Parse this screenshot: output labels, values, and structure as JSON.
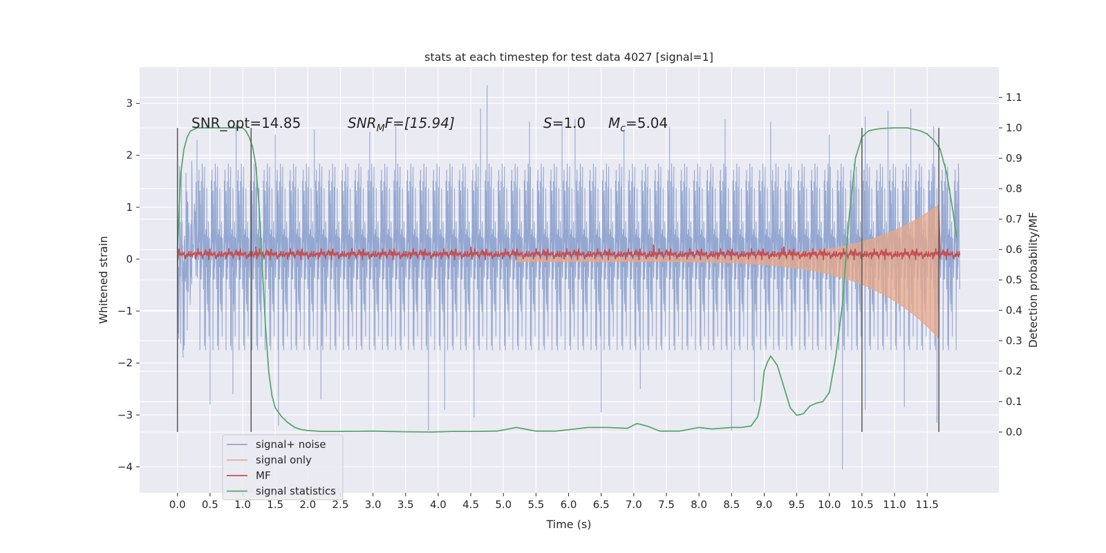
{
  "chart_data": {
    "type": "line",
    "title": "stats at each timestep for test data 4027 [signal=1]",
    "xlabel": "Time (s)",
    "ylabel": "Whitened strain",
    "y2label": "Detection probability/MF",
    "xlim": [
      -0.58,
      12.6
    ],
    "ylim": [
      -4.5,
      3.7
    ],
    "y2lim": [
      -0.2,
      1.2
    ],
    "x_ticks": [
      0.0,
      0.5,
      1.0,
      1.5,
      2.0,
      2.5,
      3.0,
      3.5,
      4.0,
      4.5,
      5.0,
      5.5,
      6.0,
      6.5,
      7.0,
      7.5,
      8.0,
      8.5,
      9.0,
      9.5,
      10.0,
      10.5,
      11.0,
      11.5
    ],
    "x_tick_labels": [
      "0.0",
      "0.5",
      "1.0",
      "1.5",
      "2.0",
      "2.5",
      "3.0",
      "3.5",
      "4.0",
      "4.5",
      "5.0",
      "5.5",
      "6.0",
      "6.5",
      "7.0",
      "7.5",
      "8.0",
      "8.5",
      "9.0",
      "9.5",
      "10.0",
      "10.5",
      "11.0",
      "11.5"
    ],
    "y_ticks": [
      -4,
      -3,
      -2,
      -1,
      0,
      1,
      2,
      3
    ],
    "y_tick_labels": [
      "−4",
      "−3",
      "−2",
      "−1",
      "0",
      "1",
      "2",
      "3"
    ],
    "y2_ticks": [
      0.0,
      0.1,
      0.2,
      0.3,
      0.4,
      0.5,
      0.6,
      0.7,
      0.8,
      0.9,
      1.0,
      1.1
    ],
    "y2_tick_labels": [
      "0.0",
      "0.1",
      "0.2",
      "0.3",
      "0.4",
      "0.5",
      "0.6",
      "0.7",
      "0.8",
      "0.9",
      "1.0",
      "1.1"
    ],
    "grid": true,
    "legend_placement": "lower-left",
    "annotations": {
      "snr_opt": "SNR_opt=14.85",
      "snr_mf_label": "SNR",
      "snr_mf_sub": "M",
      "snr_mf_rest": "F=[15.94]",
      "s_label": "S",
      "s_rest": "=1.0",
      "mc_label": "M",
      "mc_sub": "c",
      "mc_rest": "=5.04"
    },
    "vlines": [
      0.0,
      1.13,
      10.5,
      11.68
    ],
    "series": [
      {
        "name": "signal+ noise",
        "color": "#8fa3cf",
        "axis": "left",
        "style": "noise",
        "x_range": [
          0.0,
          12.0
        ],
        "envelope": [
          1.35,
          1.8
        ],
        "spikes": [
          [
            0.3,
            2.3
          ],
          [
            0.9,
            2.6
          ],
          [
            1.5,
            2.4
          ],
          [
            2.1,
            2.5
          ],
          [
            2.95,
            2.45
          ],
          [
            3.35,
            2.55
          ],
          [
            4.65,
            2.9
          ],
          [
            4.75,
            3.35
          ],
          [
            5.4,
            2.65
          ],
          [
            5.9,
            2.65
          ],
          [
            6.1,
            2.7
          ],
          [
            6.85,
            2.5
          ],
          [
            7.55,
            2.55
          ],
          [
            8.4,
            2.7
          ],
          [
            9.1,
            2.65
          ],
          [
            10.0,
            2.4
          ],
          [
            10.55,
            2.75
          ],
          [
            10.9,
            2.85
          ],
          [
            11.25,
            2.9
          ],
          [
            11.6,
            2.55
          ],
          [
            0.5,
            -2.8
          ],
          [
            0.85,
            -2.6
          ],
          [
            1.55,
            -3.2
          ],
          [
            2.2,
            -2.7
          ],
          [
            3.85,
            -3.3
          ],
          [
            4.1,
            -2.9
          ],
          [
            4.55,
            -3.05
          ],
          [
            6.5,
            -2.95
          ],
          [
            7.1,
            -2.5
          ],
          [
            8.5,
            -3.3
          ],
          [
            8.85,
            -2.75
          ],
          [
            10.2,
            -4.05
          ],
          [
            10.55,
            -2.9
          ],
          [
            11.15,
            -2.85
          ],
          [
            11.65,
            -3.15
          ]
        ]
      },
      {
        "name": "signal only",
        "color": "#e8a888",
        "axis": "left",
        "style": "chirp",
        "x_range": [
          5.2,
          11.68
        ],
        "amplitude_start": 0.03,
        "amplitude_end": 1.05
      },
      {
        "name": "MF",
        "color": "#c44e52",
        "axis": "left",
        "style": "mf",
        "x_range": [
          0.0,
          12.0
        ],
        "baseline": 0.08,
        "noise": 0.05,
        "spikes": [
          [
            11.68,
            0.95
          ],
          [
            7.3,
            0.28
          ],
          [
            9.3,
            0.24
          ],
          [
            1.2,
            0.24
          ],
          [
            4.5,
            0.24
          ]
        ]
      },
      {
        "name": "signal statistics",
        "color": "#55a868",
        "axis": "right",
        "style": "line",
        "x": [
          0.0,
          0.05,
          0.1,
          0.15,
          0.2,
          0.3,
          0.5,
          0.7,
          0.9,
          1.0,
          1.05,
          1.1,
          1.15,
          1.2,
          1.25,
          1.3,
          1.35,
          1.4,
          1.45,
          1.5,
          1.6,
          1.7,
          1.8,
          1.9,
          2.0,
          2.2,
          2.5,
          3.0,
          3.5,
          3.9,
          4.2,
          4.5,
          4.9,
          5.2,
          5.5,
          5.8,
          6.1,
          6.3,
          6.6,
          6.9,
          7.05,
          7.2,
          7.4,
          7.7,
          8.0,
          8.2,
          8.5,
          8.65,
          8.8,
          8.9,
          8.95,
          9.0,
          9.05,
          9.1,
          9.2,
          9.3,
          9.4,
          9.5,
          9.6,
          9.7,
          9.8,
          9.9,
          10.0,
          10.1,
          10.2,
          10.3,
          10.4,
          10.5,
          10.6,
          10.7,
          10.8,
          11.0,
          11.2,
          11.4,
          11.5,
          11.6,
          11.7,
          11.8,
          11.9,
          11.95
        ],
        "y": [
          0.6,
          0.85,
          0.93,
          0.97,
          0.99,
          1.0,
          1.0,
          1.0,
          1.0,
          1.0,
          0.99,
          0.97,
          0.94,
          0.88,
          0.75,
          0.55,
          0.35,
          0.2,
          0.12,
          0.08,
          0.05,
          0.03,
          0.015,
          0.008,
          0.005,
          0.002,
          0.002,
          0.003,
          0.001,
          0.0,
          0.002,
          0.002,
          0.003,
          0.015,
          0.003,
          0.003,
          0.01,
          0.015,
          0.015,
          0.012,
          0.028,
          0.02,
          0.003,
          0.003,
          0.015,
          0.01,
          0.015,
          0.015,
          0.02,
          0.05,
          0.1,
          0.2,
          0.23,
          0.25,
          0.22,
          0.15,
          0.08,
          0.055,
          0.06,
          0.085,
          0.095,
          0.1,
          0.13,
          0.25,
          0.42,
          0.7,
          0.9,
          0.97,
          0.99,
          0.995,
          0.998,
          1.0,
          1.0,
          0.99,
          0.98,
          0.96,
          0.93,
          0.85,
          0.72,
          0.64
        ]
      }
    ]
  }
}
